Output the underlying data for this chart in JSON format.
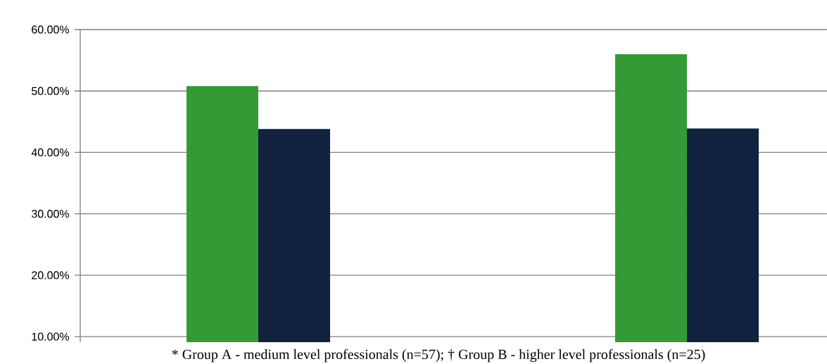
{
  "chart_data": {
    "type": "bar",
    "categories": [
      null,
      null
    ],
    "series": [
      {
        "color": "#359a35",
        "values": [
          50.8,
          56.0
        ]
      },
      {
        "color": "#10223d",
        "values": [
          43.8,
          43.9
        ]
      }
    ],
    "ylim": [
      9.1,
      60
    ],
    "yticks": [
      {
        "value": 10,
        "label": "10.00%"
      },
      {
        "value": 20,
        "label": "20.00%"
      },
      {
        "value": 30,
        "label": "30.00%"
      },
      {
        "value": 40,
        "label": "40.00%"
      },
      {
        "value": 50,
        "label": "50.00%"
      },
      {
        "value": 60,
        "label": "60.00%"
      }
    ],
    "grid": "y",
    "annotations": [
      "* Group A - medium level professionals (n=57); † Group B - higher level professionals (n=25)"
    ]
  }
}
